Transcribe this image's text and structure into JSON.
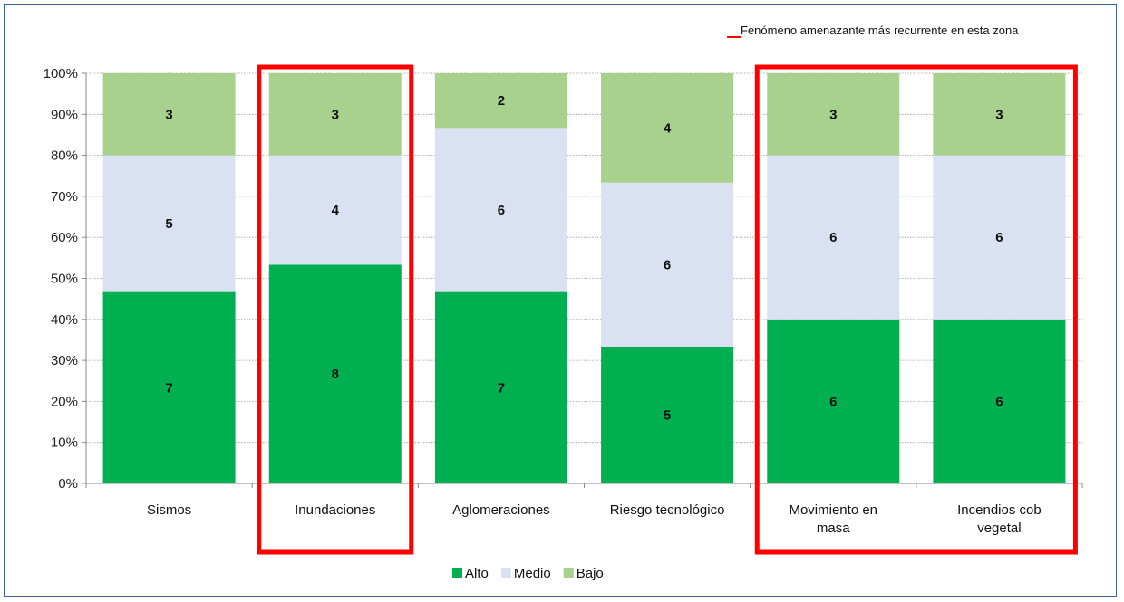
{
  "chart_data": {
    "type": "bar",
    "stacked": "percent",
    "categories": [
      [
        "Sismos"
      ],
      [
        "Inundaciones"
      ],
      [
        "Aglomeraciones"
      ],
      [
        "Riesgo tecnológico"
      ],
      [
        "Movimiento en",
        "masa"
      ],
      [
        "Incendios cob",
        "vegetal"
      ]
    ],
    "series": [
      {
        "name": "Alto",
        "color": "#00b050",
        "values": [
          7,
          8,
          7,
          5,
          6,
          6
        ]
      },
      {
        "name": "Medio",
        "color": "#dae1f2",
        "values": [
          5,
          4,
          6,
          6,
          6,
          6
        ]
      },
      {
        "name": "Bajo",
        "color": "#a9d18e",
        "values": [
          3,
          3,
          2,
          4,
          3,
          3
        ]
      }
    ],
    "y_ticks": [
      "0%",
      "10%",
      "20%",
      "30%",
      "40%",
      "50%",
      "60%",
      "70%",
      "80%",
      "90%",
      "100%"
    ],
    "ylim": [
      0,
      100
    ],
    "grid": true,
    "legend_position": "bottom",
    "annotation": {
      "text": "Fenómeno amenazante más recurrente en esta zona",
      "color": "#ff0000",
      "highlighted_categories": [
        1,
        4,
        5
      ]
    }
  }
}
